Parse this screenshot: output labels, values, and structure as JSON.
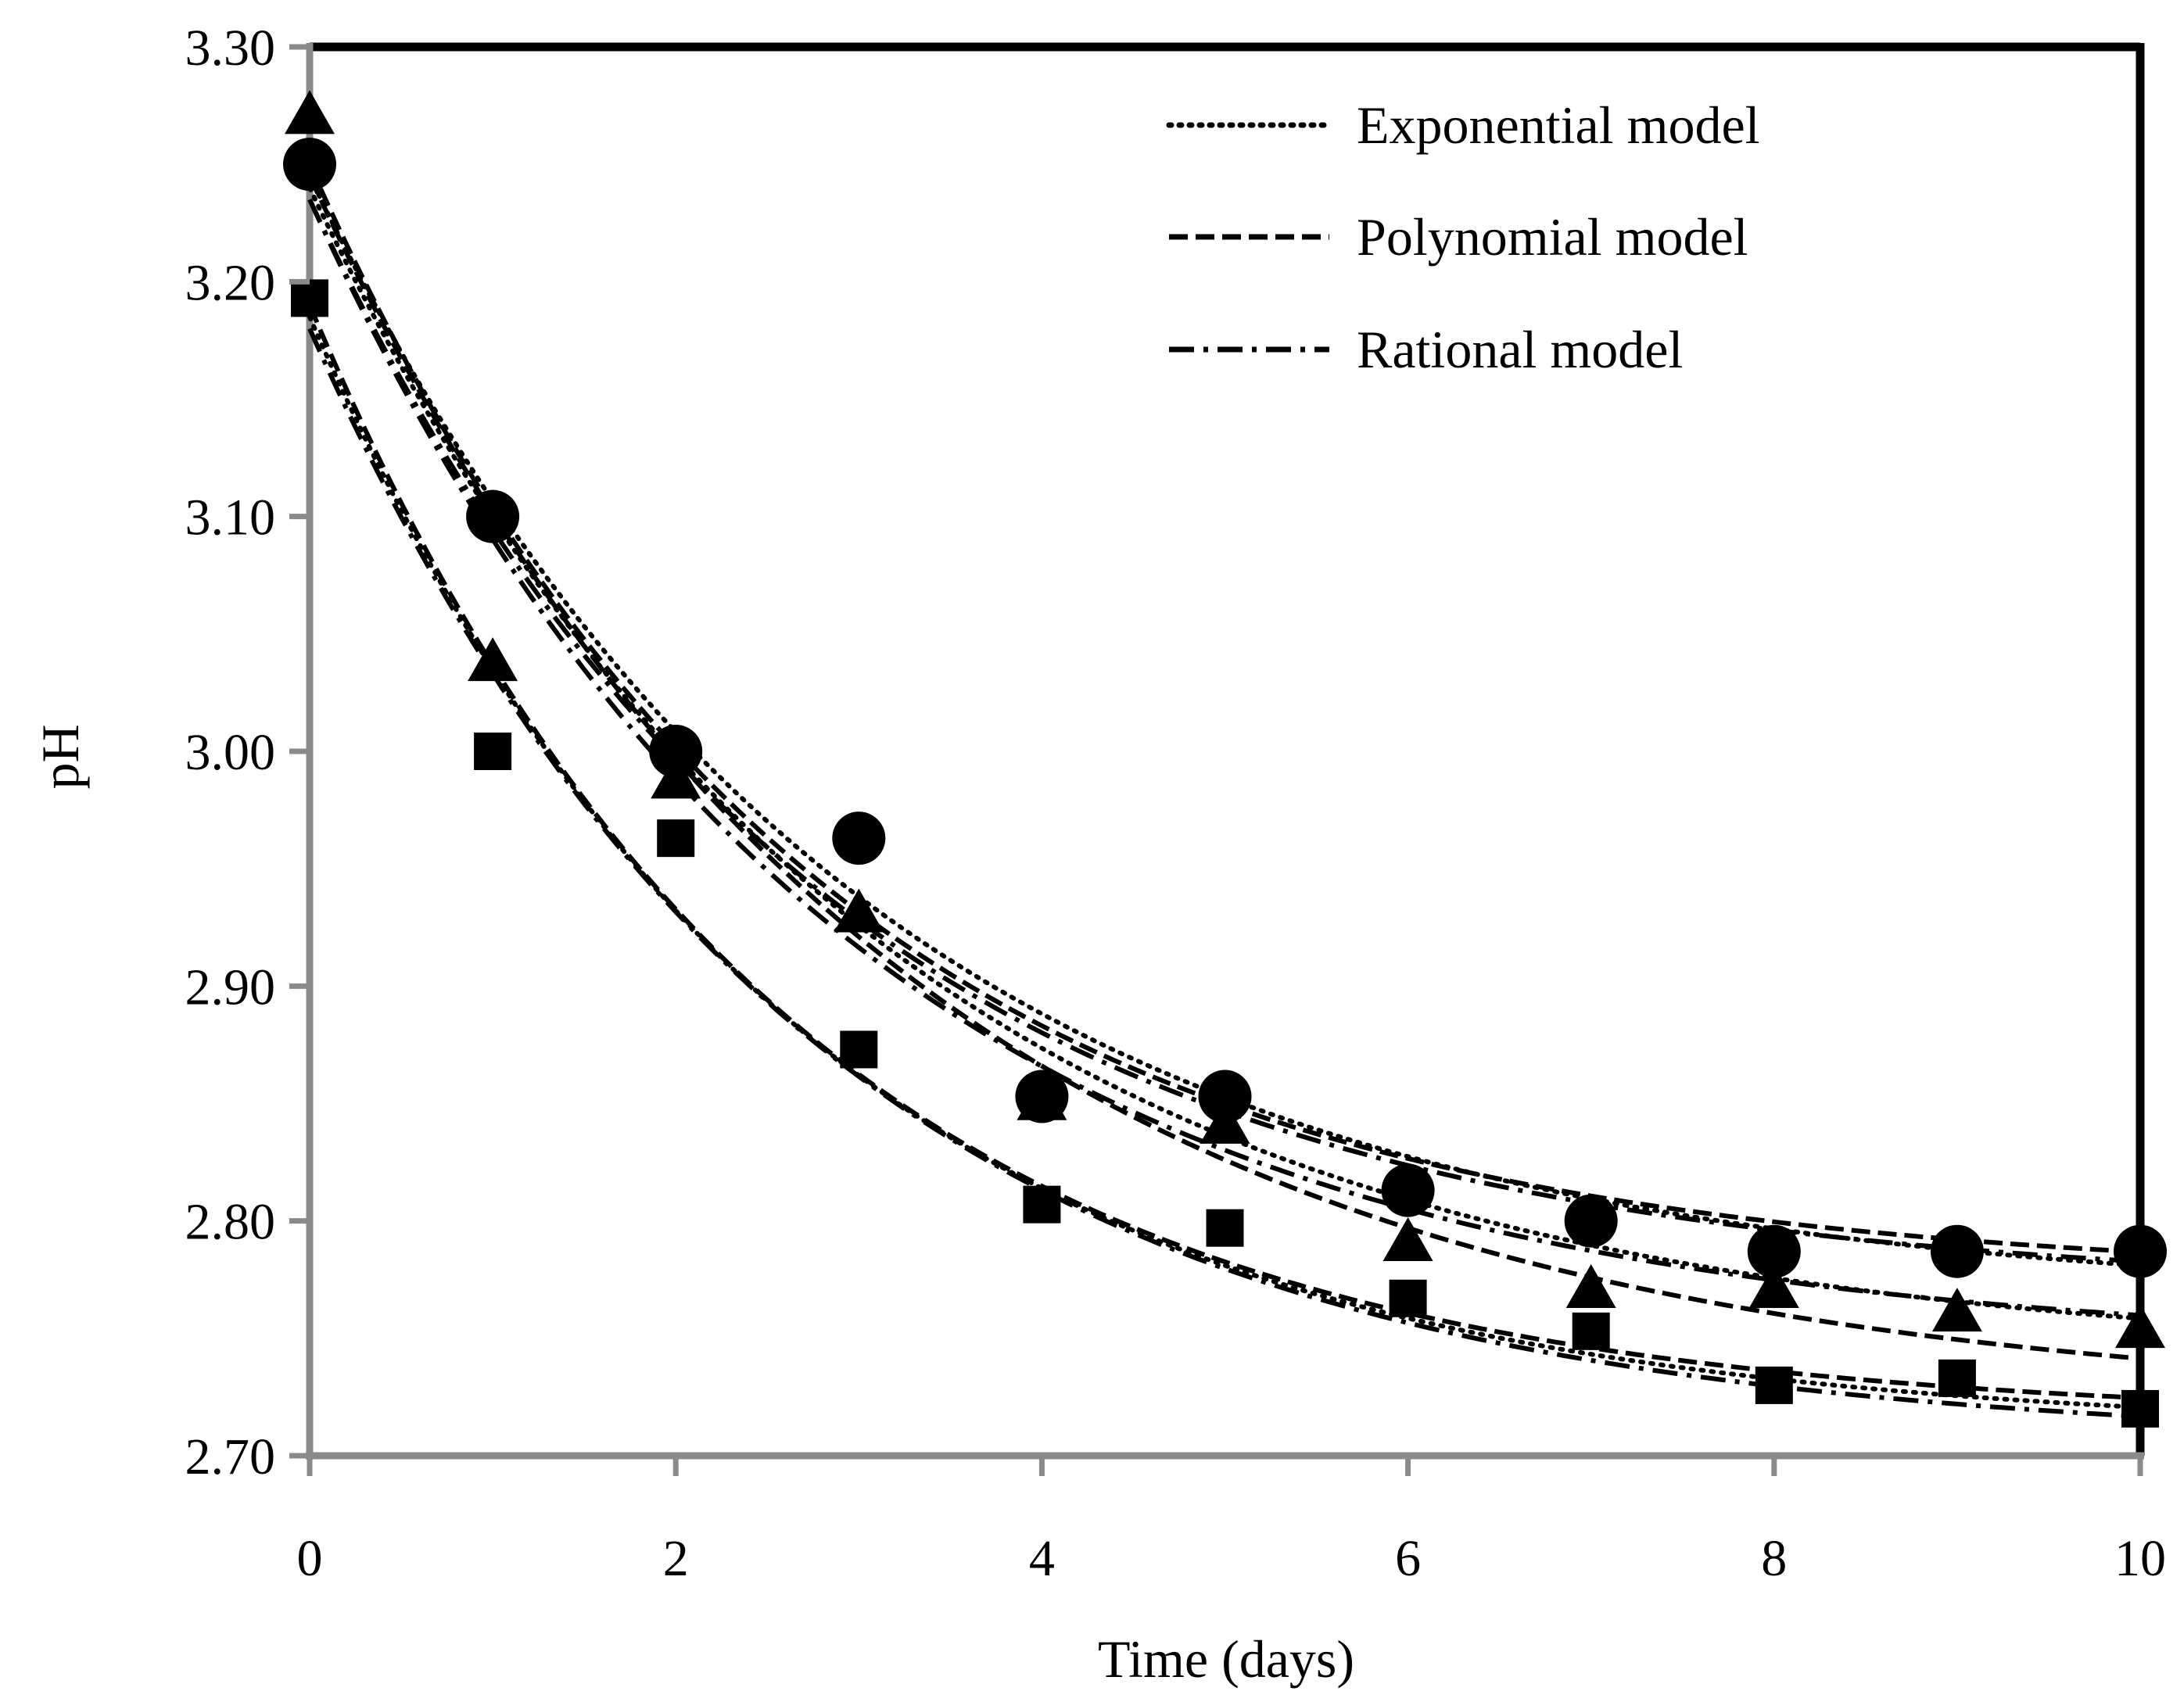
{
  "chart_data": {
    "type": "scatter",
    "title": "",
    "xlabel": "Time (days)",
    "ylabel": "pH",
    "xlim": [
      0,
      10
    ],
    "ylim": [
      2.7,
      3.3
    ],
    "x_ticks": [
      "0",
      "2",
      "4",
      "6",
      "8",
      "10"
    ],
    "y_ticks": [
      "2.70",
      "2.80",
      "2.90",
      "3.00",
      "3.10",
      "3.20",
      "3.30"
    ],
    "legend_position": "top-right",
    "legend": [
      {
        "name": "Exponential model",
        "style": "dotted"
      },
      {
        "name": "Polynomial model",
        "style": "dashed"
      },
      {
        "name": "Rational model",
        "style": "dash-dot"
      }
    ],
    "series": [
      {
        "name": "circles",
        "marker": "circle",
        "x": [
          0,
          1,
          2,
          3,
          4,
          5,
          6,
          7,
          8,
          9,
          10
        ],
        "values": [
          3.25,
          3.1,
          3.0,
          2.963,
          2.853,
          2.853,
          2.813,
          2.8,
          2.787,
          2.787,
          2.787
        ]
      },
      {
        "name": "triangles",
        "marker": "triangle",
        "x": [
          0,
          1,
          2,
          3,
          4,
          5,
          6,
          7,
          8,
          9,
          10
        ],
        "values": [
          3.27,
          3.037,
          2.987,
          2.93,
          2.85,
          2.84,
          2.79,
          2.77,
          2.77,
          2.76,
          2.753
        ]
      },
      {
        "name": "squares",
        "marker": "square",
        "x": [
          0,
          1,
          2,
          3,
          4,
          5,
          6,
          7,
          8,
          9,
          10
        ],
        "values": [
          3.193,
          3.0,
          2.963,
          2.873,
          2.807,
          2.797,
          2.767,
          2.753,
          2.73,
          2.733,
          2.72
        ]
      }
    ],
    "model_curves": [
      {
        "group": "circles",
        "model": "exponential",
        "y0": 3.245,
        "yinf": 2.765,
        "k": 0.34
      },
      {
        "group": "circles",
        "model": "polynomial",
        "y0": 3.25,
        "yinf": 2.775,
        "k": 0.37
      },
      {
        "group": "circles",
        "model": "rational",
        "y0": 3.235,
        "yinf": 2.77,
        "k": 0.36
      },
      {
        "group": "triangles",
        "model": "exponential",
        "y0": 3.24,
        "yinf": 2.74,
        "k": 0.33
      },
      {
        "group": "triangles",
        "model": "polynomial",
        "y0": 3.245,
        "yinf": 2.72,
        "k": 0.32
      },
      {
        "group": "triangles",
        "model": "rational",
        "y0": 3.235,
        "yinf": 2.745,
        "k": 0.35
      },
      {
        "group": "squares",
        "model": "exponential",
        "y0": 3.185,
        "yinf": 2.71,
        "k": 0.38
      },
      {
        "group": "squares",
        "model": "polynomial",
        "y0": 3.19,
        "yinf": 2.715,
        "k": 0.39
      },
      {
        "group": "squares",
        "model": "rational",
        "y0": 3.18,
        "yinf": 2.705,
        "k": 0.37
      }
    ]
  }
}
